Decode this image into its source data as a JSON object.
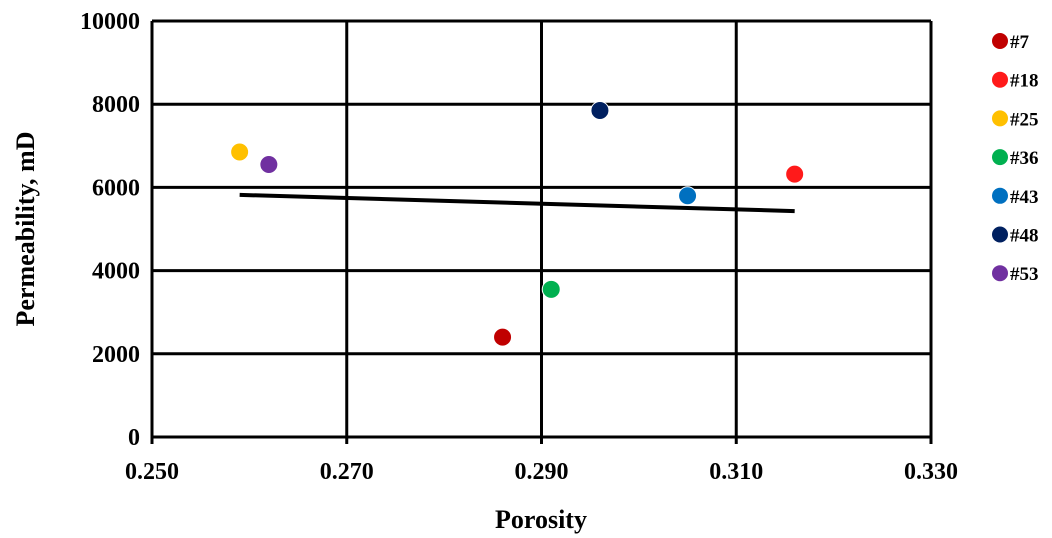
{
  "chart_data": {
    "type": "scatter",
    "xlabel": "Porosity",
    "ylabel": "Permeability, mD",
    "xlim": [
      0.25,
      0.33
    ],
    "ylim": [
      0,
      10000
    ],
    "x_ticks": [
      "0.250",
      "0.270",
      "0.290",
      "0.310",
      "0.330"
    ],
    "y_ticks": [
      "0",
      "2000",
      "4000",
      "6000",
      "8000",
      "10000"
    ],
    "grid": true,
    "legend_position": "right",
    "series": [
      {
        "name": "#7",
        "color": "#c00000",
        "points": [
          {
            "x": 0.286,
            "y": 2400
          }
        ]
      },
      {
        "name": "#18",
        "color": "#ff1a1a",
        "points": [
          {
            "x": 0.316,
            "y": 6320
          }
        ]
      },
      {
        "name": "#25",
        "color": "#ffc000",
        "points": [
          {
            "x": 0.259,
            "y": 6850
          }
        ]
      },
      {
        "name": "#36",
        "color": "#00b050",
        "points": [
          {
            "x": 0.291,
            "y": 3550
          }
        ]
      },
      {
        "name": "#43",
        "color": "#0070c0",
        "points": [
          {
            "x": 0.305,
            "y": 5800
          }
        ]
      },
      {
        "name": "#48",
        "color": "#002060",
        "points": [
          {
            "x": 0.296,
            "y": 7850
          }
        ]
      },
      {
        "name": "#53",
        "color": "#7030a0",
        "points": [
          {
            "x": 0.262,
            "y": 6550
          }
        ]
      }
    ],
    "trendline": {
      "color": "#000000",
      "points": [
        {
          "x": 0.259,
          "y": 5820
        },
        {
          "x": 0.316,
          "y": 5430
        }
      ]
    }
  }
}
